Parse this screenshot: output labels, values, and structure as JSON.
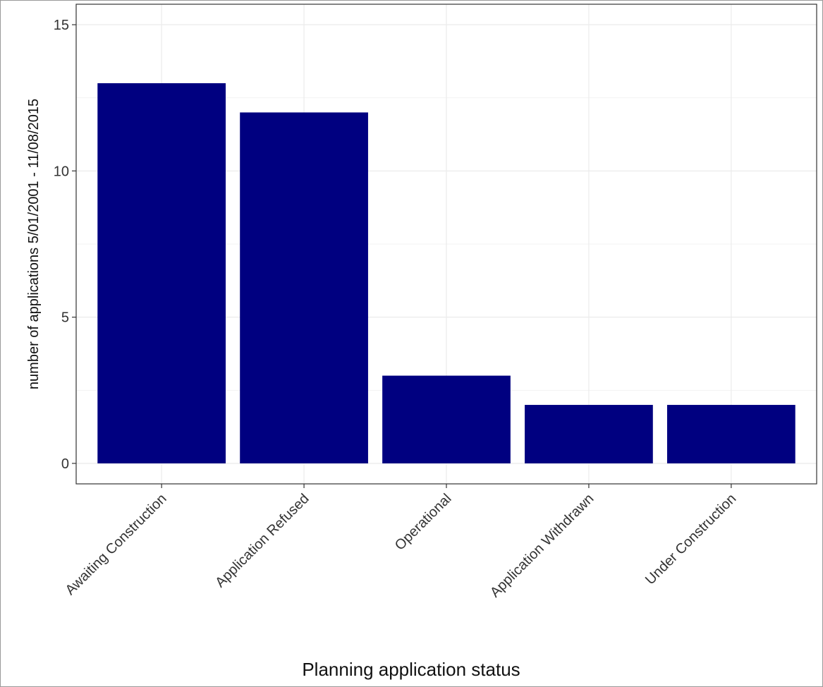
{
  "chart_data": {
    "type": "bar",
    "title": "",
    "xlabel": "Planning application status",
    "ylabel": "number of applications 5/01/2001 - 11/08/2015",
    "categories": [
      "Awaiting Construction",
      "Application Refused",
      "Operational",
      "Application Withdrawn",
      "Under Construction"
    ],
    "values": [
      13,
      12,
      3,
      2,
      2
    ],
    "ylim": [
      -0.7,
      15.7
    ],
    "yticks": [
      0,
      5,
      10,
      15
    ],
    "grid": true,
    "legend": "none",
    "bar_color": "#000080",
    "grid_color": "#ebebeb",
    "panel_border_color": "#333333"
  }
}
